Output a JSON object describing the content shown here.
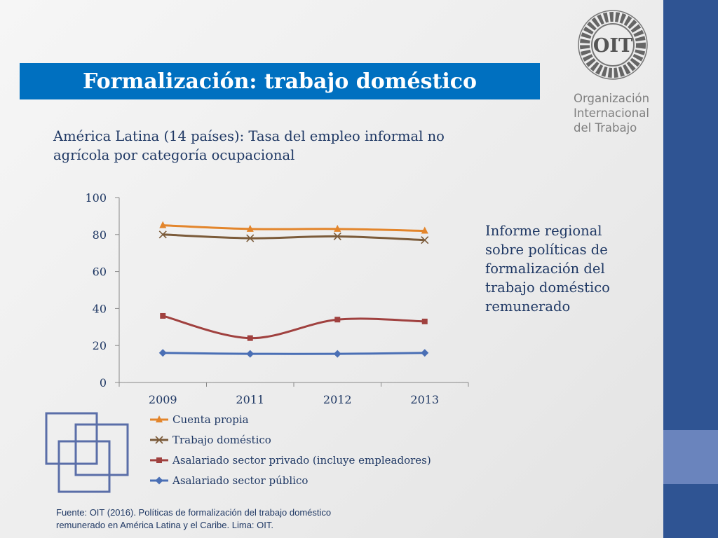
{
  "slide": {
    "title": "Formalización: trabajo doméstico",
    "chart_title": "América Latina (14 países): Tasa del empleo informal no agrícola por categoría ocupacional",
    "side_note": "Informe regional sobre políticas de formalización del trabajo doméstico remunerado",
    "source": "Fuente: OIT (2016). Políticas de formalización del trabajo doméstico remunerado en América Latina y el Caribe. Lima: OIT."
  },
  "logo": {
    "acronym": "OIT",
    "name_lines": [
      "Organización",
      "Internacional",
      "del Trabajo"
    ]
  },
  "colors": {
    "title_banner": "#0070c0",
    "side_bar": "#2f5493",
    "text": "#1f3864"
  },
  "chart_data": {
    "type": "line",
    "categories": [
      "2009",
      "2011",
      "2012",
      "2013"
    ],
    "ylim": [
      0,
      100
    ],
    "yticks": [
      0,
      20,
      40,
      60,
      80,
      100
    ],
    "legend_position": "bottom",
    "grid": false,
    "series": [
      {
        "name": "Cuenta propia",
        "values": [
          85,
          83,
          83,
          82
        ],
        "color": "#e3852b",
        "marker": "triangle"
      },
      {
        "name": "Trabajo doméstico",
        "values": [
          80,
          78,
          79,
          77
        ],
        "color": "#7b5b3a",
        "marker": "x"
      },
      {
        "name": "Asalariado sector privado (incluye empleadores)",
        "values": [
          36,
          24,
          34,
          33
        ],
        "color": "#a0413f",
        "marker": "square"
      },
      {
        "name": "Asalariado sector público",
        "values": [
          16,
          15.5,
          15.5,
          16
        ],
        "color": "#4a6fb5",
        "marker": "diamond"
      }
    ]
  }
}
